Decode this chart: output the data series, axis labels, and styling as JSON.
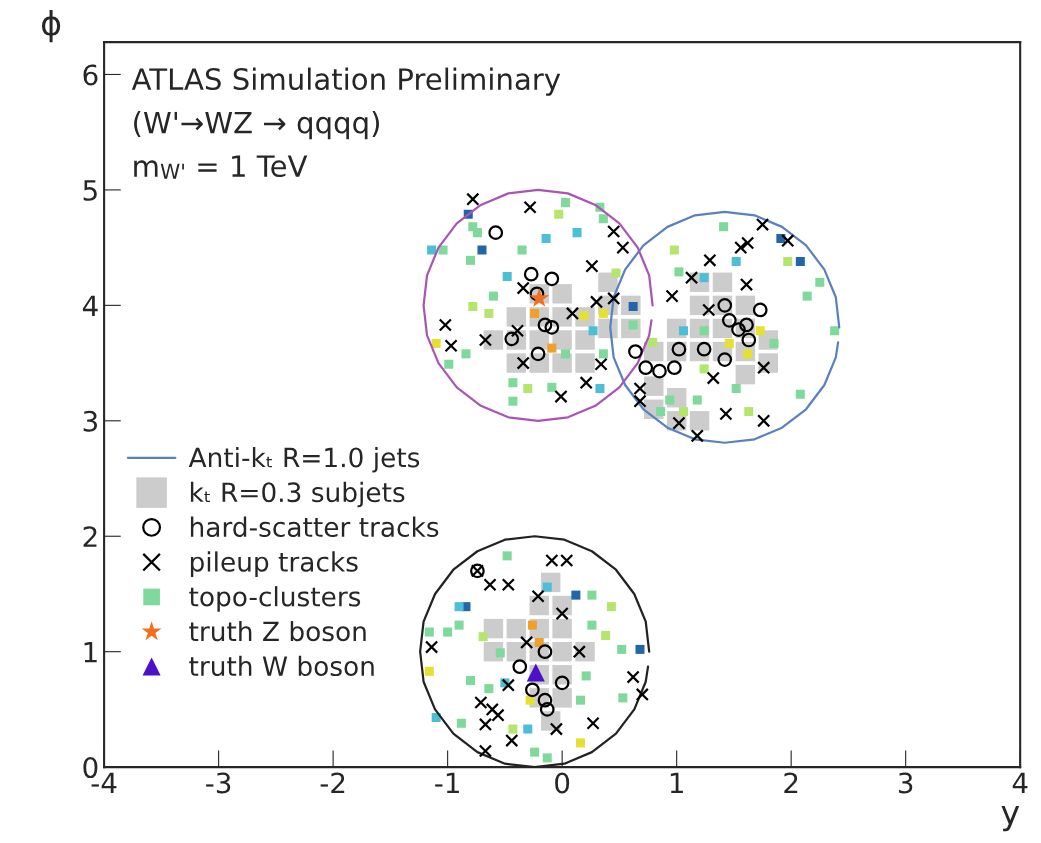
{
  "chart_data": {
    "type": "scatter",
    "xlabel": "y",
    "ylabel": "ϕ",
    "annotations": [
      "ATLAS Simulation Preliminary",
      "(W'→WZ → qqqq)",
      "m$_{W'}$ = 1 TeV"
    ],
    "xlim": [
      -4,
      4
    ],
    "ylim": [
      0,
      6.28
    ],
    "xticks": [
      -4,
      -3,
      -2,
      -1,
      0,
      1,
      2,
      3,
      4
    ],
    "yticks": [
      0,
      1,
      2,
      3,
      4,
      5,
      6
    ],
    "grid": false,
    "legend": "left",
    "series": [
      {
        "type": "line",
        "name": "Anti-kₜ R=1.0 jets",
        "color": "#5a80c0",
        "x": [
          2.42,
          2.39,
          2.29,
          2.13,
          1.92,
          1.68,
          1.42,
          1.16,
          0.92,
          0.71,
          0.55,
          0.45,
          0.42,
          0.45,
          0.55,
          0.71,
          0.92,
          1.16,
          1.42,
          1.68,
          1.92,
          2.13,
          2.29,
          2.39,
          2.41
        ],
        "values": [
          3.81,
          4.07,
          4.31,
          4.52,
          4.68,
          4.78,
          4.81,
          4.78,
          4.68,
          4.52,
          4.31,
          4.07,
          3.81,
          3.55,
          3.31,
          3.1,
          2.94,
          2.84,
          2.81,
          2.84,
          2.94,
          3.1,
          3.31,
          3.55,
          3.68
        ]
      },
      {
        "name": "kₜ R=0.3 subjets",
        "marker": "square",
        "color": "#cccccc",
        "x": [
          -0.6,
          -0.4,
          -0.2,
          0,
          -0.4,
          -0.2,
          0,
          -0.2,
          0,
          -0.4,
          -0.2,
          0,
          0.2,
          0.2,
          0.4,
          0.4,
          0.4,
          0.6,
          0.6,
          0.2,
          0.8,
          1.0,
          1.2,
          1.0,
          1.2,
          1.4,
          1.6,
          1.4,
          1.6,
          1.2,
          1.4,
          1.6,
          1.8,
          1.8,
          1.6,
          0.8,
          1.0,
          1.0,
          1.2,
          0.8,
          1.4,
          1.2,
          -0.6,
          -0.4,
          -0.2,
          0,
          -0.4,
          -0.2,
          0,
          0.2,
          -0.6,
          -0.2,
          -0.1,
          0,
          -0.2,
          0,
          -0.2,
          0,
          -0.1
        ],
        "values": [
          3.7,
          3.7,
          3.7,
          3.7,
          3.9,
          3.9,
          3.9,
          4.1,
          4.1,
          3.5,
          3.5,
          3.5,
          3.7,
          3.9,
          3.8,
          4.0,
          4.2,
          4.0,
          3.8,
          3.5,
          3.6,
          3.6,
          3.6,
          3.8,
          3.8,
          3.8,
          3.8,
          4.0,
          4.0,
          4.0,
          3.6,
          3.6,
          3.7,
          3.5,
          3.4,
          3.3,
          3.2,
          3.0,
          3.0,
          3.1,
          4.2,
          4.2,
          1.2,
          1.2,
          1.2,
          1.2,
          1.0,
          1.0,
          1.0,
          1.0,
          1.0,
          1.4,
          1.6,
          1.4,
          0.8,
          0.8,
          0.6,
          0.6,
          0.4
        ]
      },
      {
        "name": "hard-scatter tracks",
        "marker": "circle",
        "color": "#000000",
        "x": [
          -0.58,
          -0.27,
          -0.09,
          -0.22,
          -0.15,
          -0.09,
          -0.44,
          -0.21,
          0.64,
          0.73,
          0.85,
          0.98,
          1.02,
          1.24,
          1.42,
          1.42,
          1.46,
          1.61,
          1.63,
          1.73,
          1.54,
          -0.15,
          -0.37,
          -0.26,
          -0.15,
          -0.13,
          0.0,
          -0.74
        ],
        "values": [
          4.63,
          4.27,
          4.23,
          4.1,
          3.83,
          3.81,
          3.71,
          3.58,
          3.6,
          3.46,
          3.43,
          3.46,
          3.62,
          3.62,
          3.53,
          4.0,
          3.87,
          3.83,
          3.7,
          3.96,
          3.79,
          1.0,
          0.87,
          0.67,
          0.58,
          0.5,
          0.73,
          1.7
        ]
      },
      {
        "name": "pileup tracks",
        "marker": "cross",
        "color": "#000000",
        "x": [
          -0.78,
          -0.28,
          0.45,
          0.53,
          0.26,
          0.3,
          0.45,
          0.09,
          -0.34,
          -1.02,
          -0.97,
          -0.67,
          -0.39,
          -0.34,
          0.21,
          0.34,
          -0.01,
          1.75,
          1.62,
          1.56,
          1.97,
          1.29,
          1.13,
          1.61,
          0.96,
          1.28,
          1.76,
          1.32,
          0.68,
          0.68,
          1.43,
          1.76,
          1.02,
          1.18,
          -0.09,
          0.04,
          -0.74,
          -0.63,
          -0.47,
          -0.21,
          0.0,
          -1.14,
          -0.31,
          0.15,
          -0.47,
          -0.71,
          -0.61,
          -0.56,
          -0.67,
          -0.05,
          0.27,
          -0.44,
          -0.67,
          0.62,
          0.7
        ],
        "values": [
          4.92,
          4.85,
          4.64,
          4.5,
          4.34,
          4.03,
          4.06,
          3.93,
          4.15,
          3.83,
          3.65,
          3.7,
          3.78,
          3.5,
          3.33,
          3.49,
          3.21,
          4.7,
          4.54,
          4.5,
          4.56,
          4.39,
          4.24,
          4.18,
          4.08,
          3.96,
          3.46,
          3.37,
          3.28,
          3.17,
          3.06,
          3.0,
          2.98,
          2.87,
          1.79,
          1.79,
          1.7,
          1.58,
          1.58,
          1.48,
          1.33,
          1.04,
          1.08,
          1.0,
          0.71,
          0.56,
          0.5,
          0.45,
          0.37,
          0.33,
          0.38,
          0.23,
          0.14,
          0.78,
          0.63
        ]
      },
      {
        "name": "topo-clusters",
        "marker": "square",
        "x": [
          0.03,
          -0.03,
          0.33,
          0.36,
          -0.82,
          -0.78,
          -0.74,
          -1.14,
          -1.04,
          -0.7,
          -0.8,
          -0.14,
          0.13,
          -0.35,
          -0.48,
          -0.6,
          -0.78,
          -0.64,
          0.62,
          0.62,
          0.27,
          0.19,
          0.36,
          -0.24,
          -0.09,
          -1.1,
          -0.84,
          -0.99,
          0.03,
          0.36,
          -0.43,
          -0.3,
          -0.43,
          -0.09,
          0.33,
          0.47,
          1.41,
          0.98,
          1.52,
          1.97,
          2.08,
          1.91,
          1.02,
          1.24,
          2.25,
          2.14,
          1.06,
          1.24,
          1.73,
          1.85,
          1.46,
          1.62,
          0.79,
          2.38,
          1.24,
          1.52,
          2.08,
          0.94,
          0.86,
          1.06,
          1.63,
          1.18,
          -0.48,
          -0.13,
          0.12,
          0.26,
          -0.84,
          -0.9,
          0.43,
          -0.9,
          -1.0,
          -1.16,
          -0.26,
          0.26,
          -0.69,
          0.38,
          -0.2,
          0.68,
          0.52,
          -0.54,
          -1.16,
          0.21,
          -0.8,
          -0.64,
          -0.5,
          0.53,
          0.16,
          -0.28,
          -1.1,
          -0.88,
          -0.3,
          -0.43,
          0.16,
          -0.24,
          -0.13
        ],
        "values": [
          4.89,
          4.79,
          4.85,
          4.75,
          4.79,
          4.68,
          4.63,
          4.48,
          4.48,
          4.48,
          4.39,
          4.58,
          4.63,
          4.48,
          4.25,
          4.08,
          3.99,
          3.93,
          3.99,
          3.83,
          3.78,
          3.91,
          3.93,
          3.93,
          3.63,
          3.67,
          3.58,
          3.49,
          3.58,
          3.58,
          3.33,
          3.28,
          3.17,
          3.29,
          3.28,
          4.28,
          4.68,
          4.48,
          4.38,
          4.38,
          4.38,
          4.58,
          4.29,
          4.24,
          4.2,
          4.08,
          3.78,
          3.78,
          3.78,
          3.67,
          3.67,
          3.58,
          3.68,
          3.78,
          3.45,
          3.28,
          3.23,
          3.18,
          3.08,
          3.08,
          3.08,
          3.18,
          1.83,
          1.56,
          1.49,
          1.49,
          1.39,
          1.39,
          1.39,
          1.23,
          1.17,
          1.17,
          1.23,
          1.23,
          1.13,
          1.14,
          1.08,
          1.02,
          1.02,
          0.99,
          0.83,
          0.79,
          0.75,
          0.68,
          0.73,
          0.6,
          0.58,
          0.58,
          0.43,
          0.38,
          0.33,
          0.33,
          0.21,
          0.13,
          0.08
        ],
        "colors": [
          "#7fd99a",
          "#b4e66e",
          "#7fd99a",
          "#7fd99a",
          "#2266aa",
          "#7fd99a",
          "#7fd99a",
          "#4cbfd6",
          "#7fd99a",
          "#2266aa",
          "#7fd99a",
          "#4cbfd6",
          "#4cbfd6",
          "#7fd99a",
          "#4cbfd6",
          "#7fd99a",
          "#b4e66e",
          "#b4e66e",
          "#2266aa",
          "#7fd99a",
          "#4cbfd6",
          "#e6e032",
          "#e6e032",
          "#f0a028",
          "#f0a028",
          "#e6e032",
          "#7fd99a",
          "#7fd99a",
          "#7fd99a",
          "#7fd99a",
          "#7fd99a",
          "#b4e66e",
          "#7fd99a",
          "#7fd99a",
          "#4cbfd6",
          "#b4e66e",
          "#7fd99a",
          "#b4e66e",
          "#4cbfd6",
          "#b4e66e",
          "#2266aa",
          "#2266aa",
          "#7fd99a",
          "#4cbfd6",
          "#7fd99a",
          "#7fd99a",
          "#4cbfd6",
          "#7fd99a",
          "#e6e032",
          "#7fd99a",
          "#e6e032",
          "#e6e032",
          "#b4e66e",
          "#7fd99a",
          "#b4e66e",
          "#7fd99a",
          "#7fd99a",
          "#7fd99a",
          "#7fd99a",
          "#b4e66e",
          "#b4e66e",
          "#7fd99a",
          "#7fd99a",
          "#4cbfd6",
          "#2266aa",
          "#7fd99a",
          "#2266aa",
          "#4cbfd6",
          "#b4e66e",
          "#7fd99a",
          "#7fd99a",
          "#7fd99a",
          "#f0a028",
          "#7fd99a",
          "#b4e66e",
          "#b4e66e",
          "#f0a028",
          "#2266aa",
          "#7fd99a",
          "#7fd99a",
          "#e6e032",
          "#7fd99a",
          "#7fd99a",
          "#7fd99a",
          "#4cbfd6",
          "#7fd99a",
          "#7fd99a",
          "#e6e032",
          "#4cbfd6",
          "#7fd99a",
          "#4cbfd6",
          "#b4e66e",
          "#e6e032",
          "#7fd99a",
          "#7fd99a"
        ]
      },
      {
        "name": "truth Z boson",
        "marker": "star",
        "color": "#f07020",
        "x": [
          -0.2
        ],
        "values": [
          4.06
        ]
      },
      {
        "name": "truth W boson",
        "marker": "triangle",
        "color": "#4b10c8",
        "x": [
          -0.23
        ],
        "values": [
          0.82
        ]
      },
      {
        "type": "line",
        "color": "#a855b5",
        "x": [
          0.79,
          0.76,
          0.66,
          0.5,
          0.29,
          0.05,
          -0.21,
          -0.47,
          -0.71,
          -0.92,
          -1.08,
          -1.18,
          -1.21,
          -1.18,
          -1.08,
          -0.92,
          -0.71,
          -0.47,
          -0.21,
          0.05,
          0.29,
          0.5,
          0.66,
          0.76,
          0.78
        ],
        "values": [
          4.0,
          4.26,
          4.5,
          4.71,
          4.87,
          4.97,
          5.0,
          4.97,
          4.87,
          4.71,
          4.5,
          4.26,
          4.0,
          3.74,
          3.5,
          3.29,
          3.13,
          3.03,
          3.0,
          3.03,
          3.13,
          3.29,
          3.5,
          3.74,
          3.87
        ]
      },
      {
        "type": "line",
        "color": "#222222",
        "x": [
          0.76,
          0.73,
          0.63,
          0.47,
          0.26,
          0.02,
          -0.24,
          -0.5,
          -0.74,
          -0.95,
          -1.11,
          -1.21,
          -1.24,
          -1.21,
          -1.11,
          -0.95,
          -0.74,
          -0.5,
          -0.24,
          0.02,
          0.26,
          0.47,
          0.63,
          0.73,
          0.75
        ],
        "values": [
          1.0,
          1.26,
          1.5,
          1.71,
          1.87,
          1.97,
          2.0,
          1.97,
          1.87,
          1.71,
          1.5,
          1.26,
          1.0,
          0.74,
          0.5,
          0.29,
          0.13,
          0.03,
          0.0,
          0.03,
          0.13,
          0.29,
          0.5,
          0.74,
          0.87
        ]
      }
    ]
  }
}
